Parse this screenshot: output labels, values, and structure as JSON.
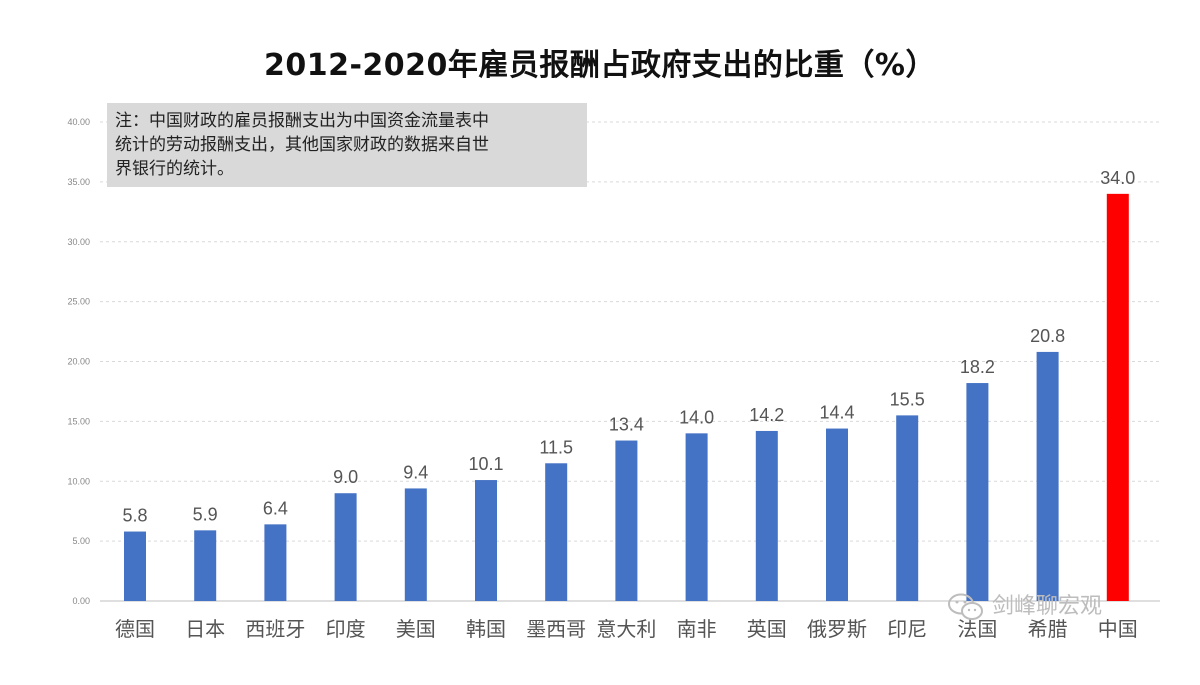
{
  "chart_data": {
    "type": "bar",
    "title": "2012-2020年雇员报酬占政府支出的比重（%）",
    "note_lines": [
      "注：中国财政的雇员报酬支出为中国资金流量表中",
      "统计的劳动报酬支出，其他国家财政的数据来自世",
      "界银行的统计。"
    ],
    "categories": [
      "德国",
      "日本",
      "西班牙",
      "印度",
      "美国",
      "韩国",
      "墨西哥",
      "意大利",
      "南非",
      "英国",
      "俄罗斯",
      "印尼",
      "法国",
      "希腊",
      "中国"
    ],
    "values": [
      5.8,
      5.9,
      6.4,
      9.0,
      9.4,
      10.1,
      11.5,
      13.4,
      14.0,
      14.2,
      14.4,
      15.5,
      18.2,
      20.8,
      34.0
    ],
    "value_labels": [
      "5.8",
      "5.9",
      "6.4",
      "9.0",
      "9.4",
      "10.1",
      "11.5",
      "13.4",
      "14.0",
      "14.2",
      "14.4",
      "15.5",
      "18.2",
      "20.8",
      "34.0"
    ],
    "ylim": [
      0,
      40
    ],
    "yticks": [
      "0.00",
      "5.00",
      "10.00",
      "15.00",
      "20.00",
      "25.00",
      "30.00",
      "35.00",
      "40.00"
    ],
    "grid": true,
    "colors": {
      "default": "#4472c4",
      "highlight": "#ff0000"
    },
    "highlight_category": "中国"
  },
  "watermark": {
    "text": "剑峰聊宏观",
    "icon": "wechat-icon"
  }
}
